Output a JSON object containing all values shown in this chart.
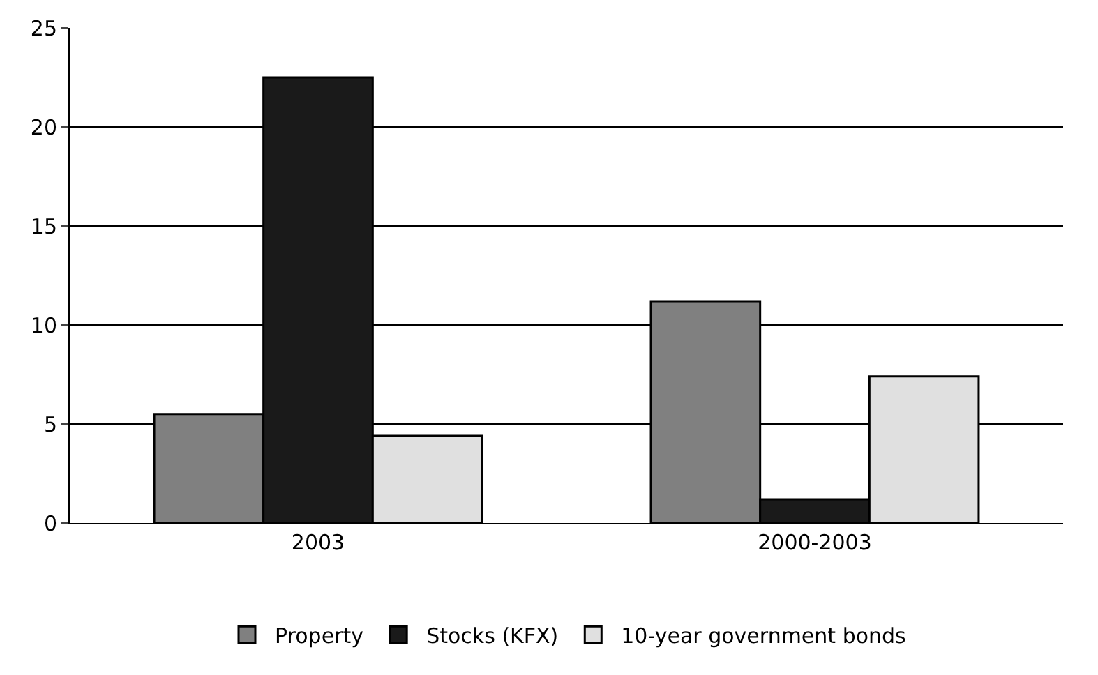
{
  "chart_data": {
    "type": "bar",
    "categories": [
      "2003",
      "2000-2003"
    ],
    "series": [
      {
        "name": "Property",
        "color": "#808080",
        "values": [
          5.5,
          11.2
        ]
      },
      {
        "name": "Stocks (KFX)",
        "color": "#1a1a1a",
        "values": [
          22.5,
          1.2
        ]
      },
      {
        "name": "10-year government bonds",
        "color": "#e0e0e0",
        "values": [
          4.4,
          7.4
        ]
      }
    ],
    "ylim": [
      0,
      25
    ],
    "yticks": [
      0,
      5,
      10,
      15,
      20,
      25
    ],
    "grid": "y",
    "legend": "bottom"
  }
}
